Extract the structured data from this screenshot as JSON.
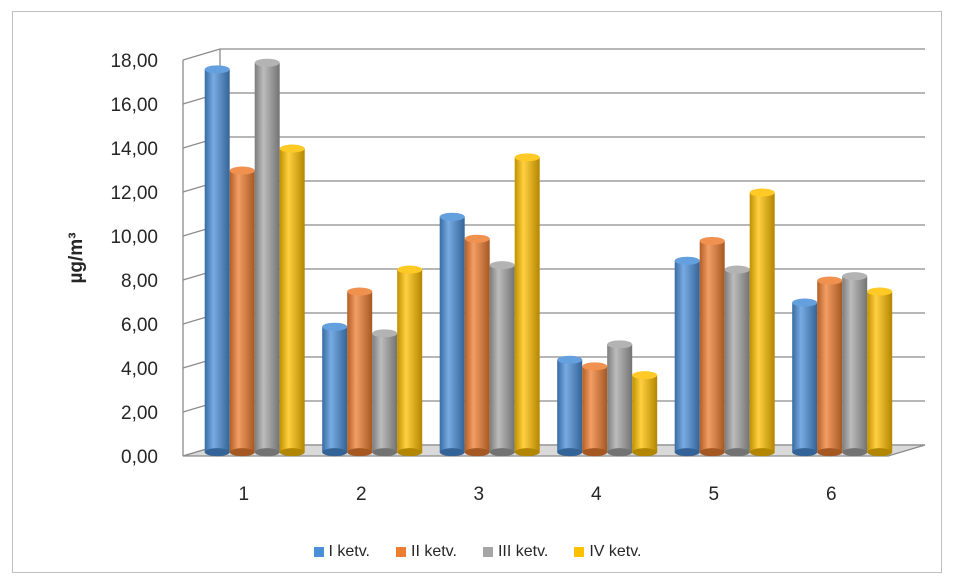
{
  "chart_data": {
    "type": "bar",
    "categories": [
      "1",
      "2",
      "3",
      "4",
      "5",
      "6"
    ],
    "series": [
      {
        "name": "I ketv.",
        "color": "#4a8fd8",
        "values": [
          17.4,
          5.7,
          10.7,
          4.2,
          8.7,
          6.8
        ]
      },
      {
        "name": "II ketv.",
        "color": "#ed7d31",
        "values": [
          12.8,
          7.3,
          9.7,
          3.9,
          9.6,
          7.8
        ]
      },
      {
        "name": "III ketv.",
        "color": "#a5a5a5",
        "values": [
          17.7,
          5.4,
          8.5,
          4.9,
          8.3,
          8.0
        ]
      },
      {
        "name": "IV ketv.",
        "color": "#ffc000",
        "values": [
          13.8,
          8.3,
          13.4,
          3.5,
          11.8,
          7.3
        ]
      }
    ],
    "ylabel": "µg/m³",
    "ylim": [
      0,
      18
    ],
    "yticks": [
      "0,00",
      "2,00",
      "4,00",
      "6,00",
      "8,00",
      "10,00",
      "12,00",
      "14,00",
      "16,00",
      "18,00"
    ],
    "grid": true,
    "legend_position": "bottom"
  }
}
